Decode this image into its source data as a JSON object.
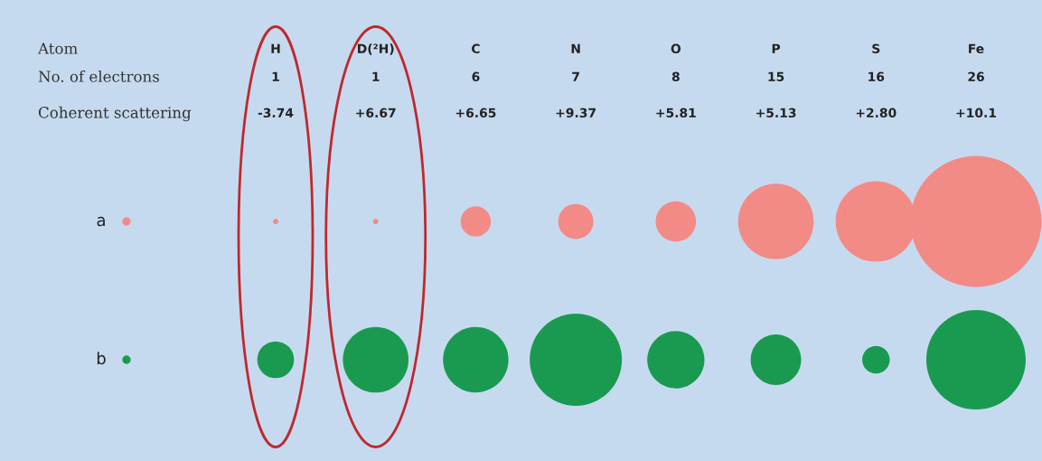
{
  "chart_data": {
    "type": "other",
    "categories": [
      "H",
      "D(²H)",
      "C",
      "N",
      "O",
      "P",
      "S",
      "Fe"
    ],
    "annotations": [
      "Atom",
      "No. of electrons",
      "Coherent scattering"
    ],
    "series": [
      {
        "name": "a",
        "color": "#f28b85",
        "values": [
          1,
          1,
          6,
          7,
          8,
          15,
          16,
          26
        ]
      },
      {
        "name": "b",
        "color": "#1a9a50",
        "values": [
          -3.74,
          6.67,
          6.65,
          9.37,
          5.81,
          5.13,
          2.8,
          10.1
        ],
        "value_labels": [
          "-3.74",
          "+6.67",
          "+6.65",
          "+9.37",
          "+5.81",
          "+5.13",
          "+2.80",
          "+10.1"
        ]
      }
    ],
    "data_labels": true
  }
}
